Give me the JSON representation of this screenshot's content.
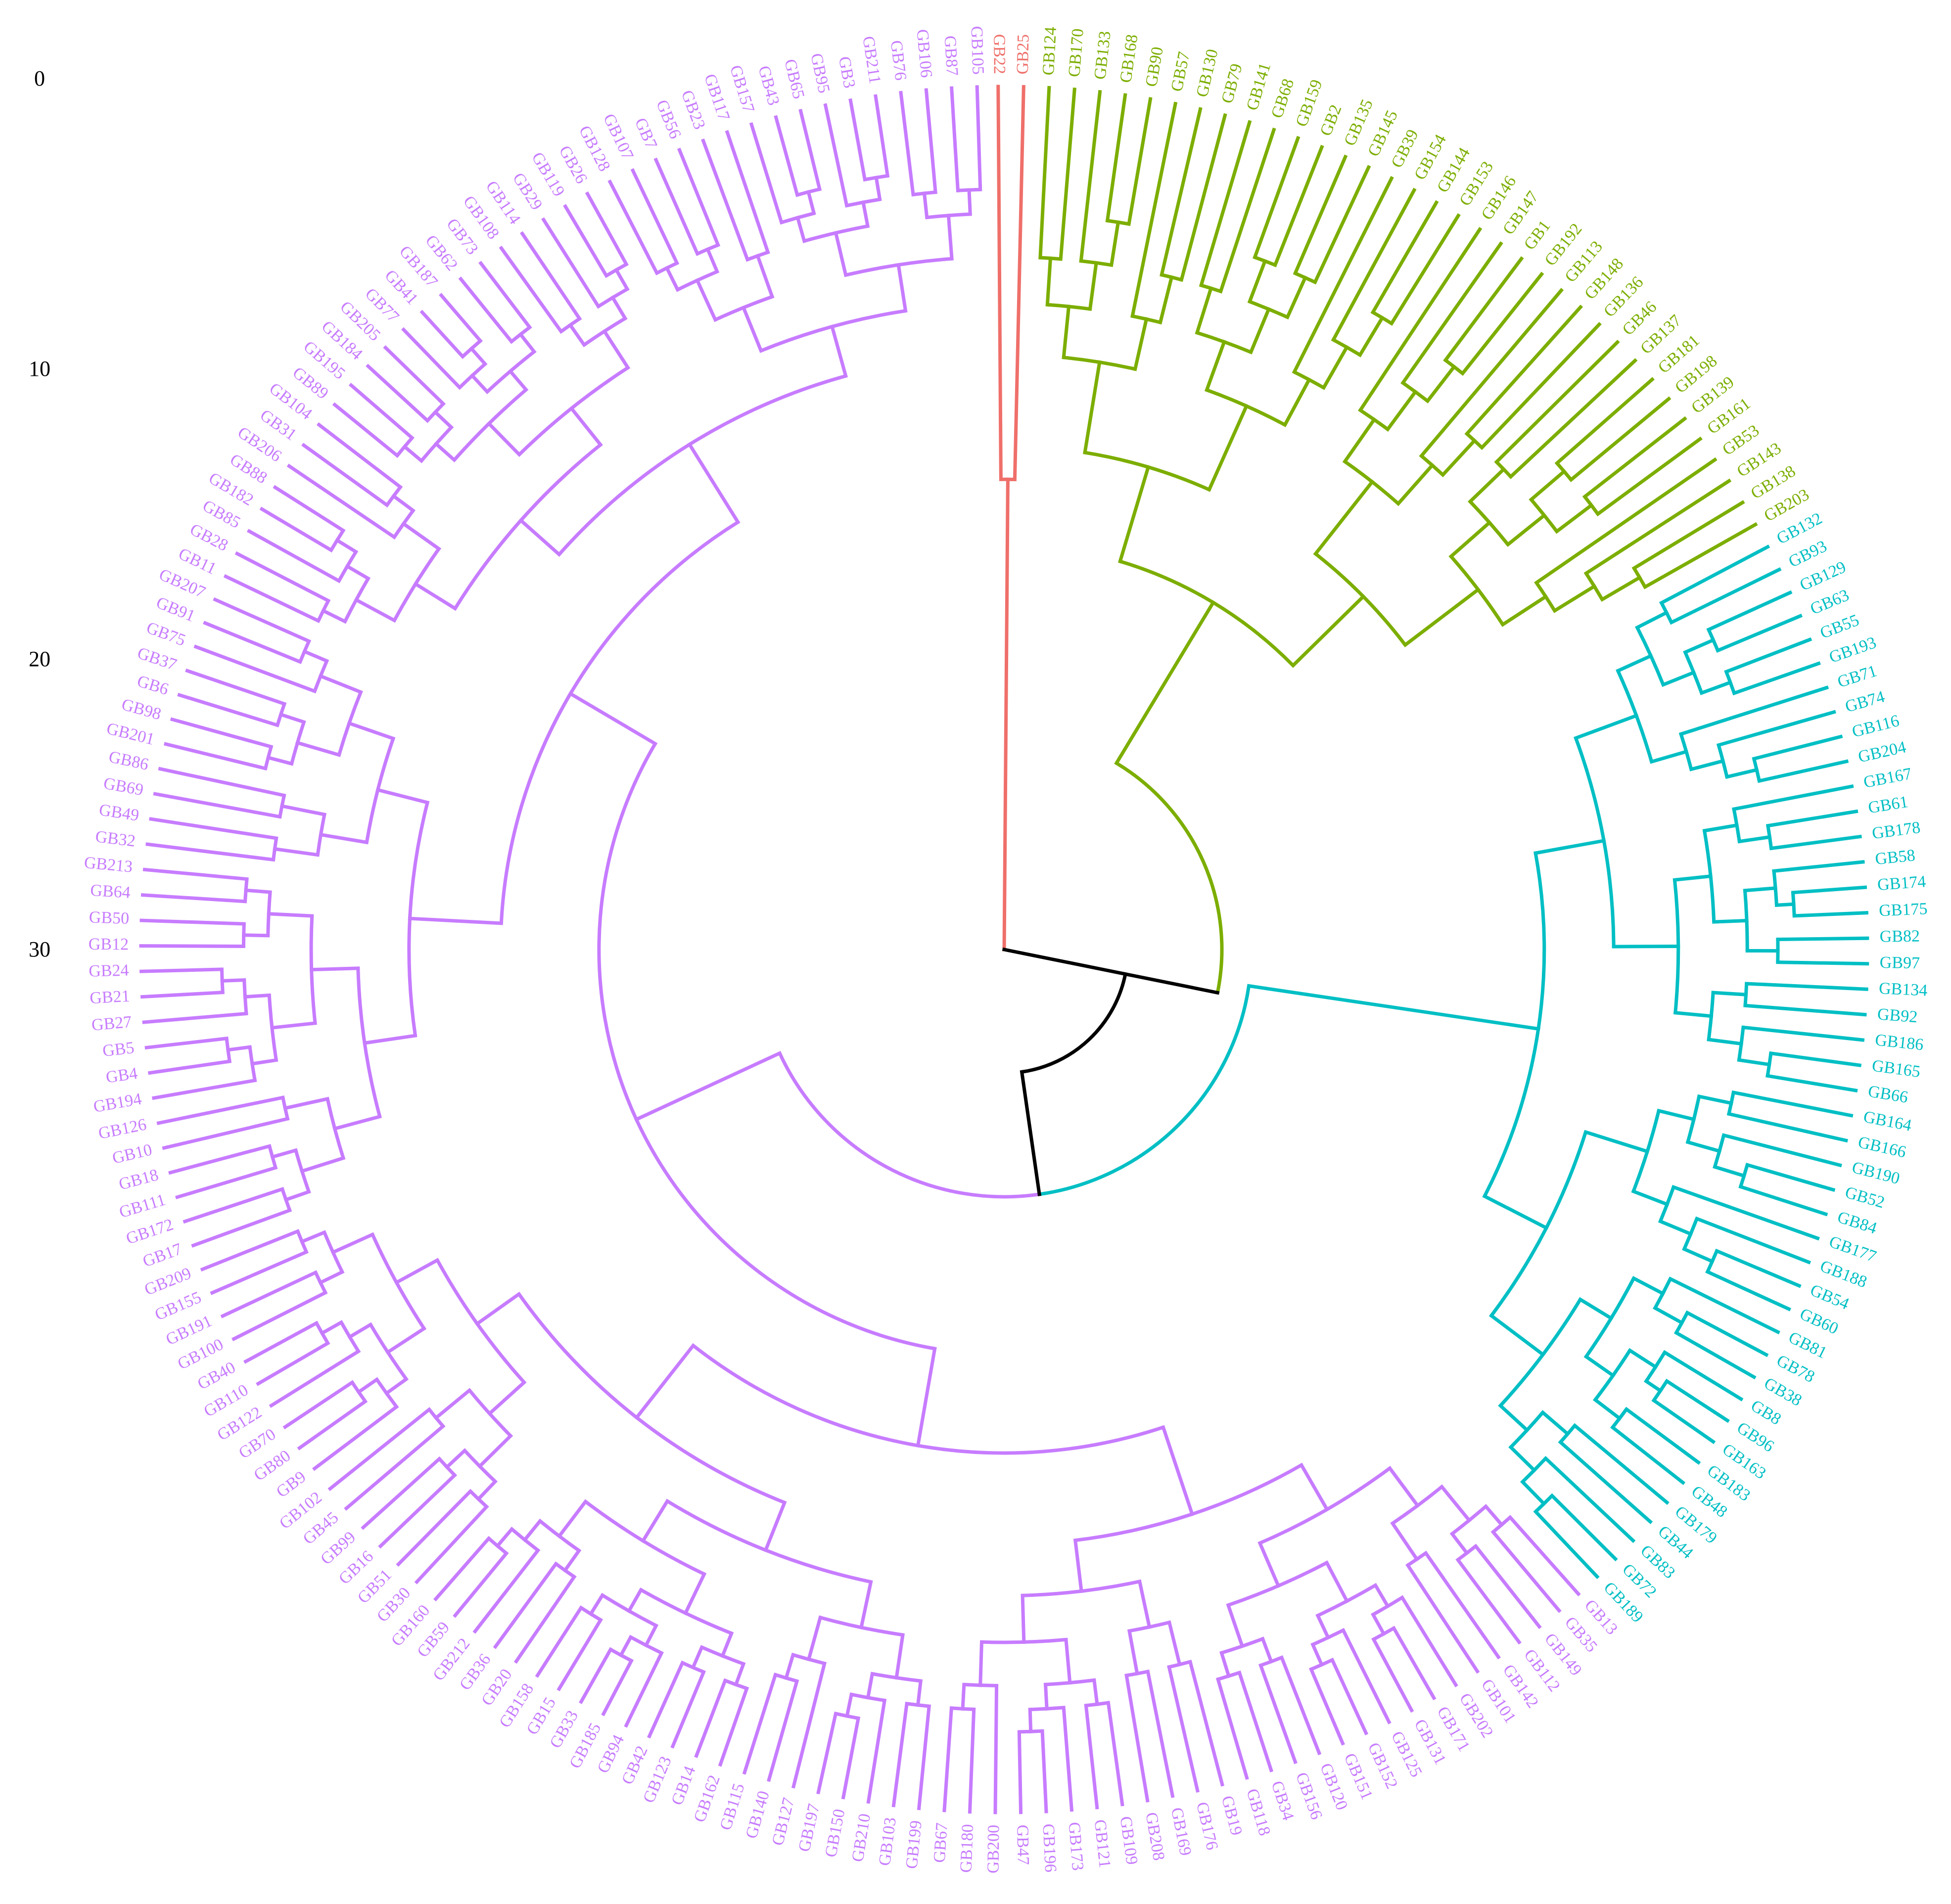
{
  "scale": {
    "ticks": [
      "0",
      "10",
      "20",
      "30"
    ]
  },
  "colors": {
    "root": "#000000",
    "red": "#EF6F6A",
    "green": "#7CAE00",
    "cyan": "#00BFC4",
    "purple": "#C77CFF"
  },
  "groups": [
    {
      "name": "red",
      "leaves": [
        "GB22",
        "GB25"
      ]
    },
    {
      "name": "green",
      "leaves": [
        "GB124",
        "GB170",
        "GB133",
        "GB168",
        "GB90",
        "GB57",
        "GB130",
        "GB79",
        "GB141",
        "GB68",
        "GB159",
        "GB2",
        "GB135",
        "GB145",
        "GB39",
        "GB154",
        "GB144",
        "GB153",
        "GB146",
        "GB147",
        "GB1",
        "GB192",
        "GB113",
        "GB148",
        "GB136",
        "GB46",
        "GB137",
        "GB181",
        "GB198",
        "GB139",
        "GB161",
        "GB53",
        "GB143",
        "GB138",
        "GB203"
      ]
    },
    {
      "name": "cyan",
      "leaves": [
        "GB132",
        "GB93",
        "GB129",
        "GB63",
        "GB55",
        "GB193",
        "GB71",
        "GB74",
        "GB116",
        "GB204",
        "GB167",
        "GB61",
        "GB178",
        "GB58",
        "GB174",
        "GB175",
        "GB82",
        "GB97",
        "GB134",
        "GB92",
        "GB186",
        "GB165",
        "GB66",
        "GB164",
        "GB166",
        "GB190",
        "GB52",
        "GB84",
        "GB177",
        "GB188",
        "GB54",
        "GB60",
        "GB81",
        "GB78",
        "GB38",
        "GB8",
        "GB96",
        "GB163",
        "GB183",
        "GB48",
        "GB179",
        "GB44",
        "GB83",
        "GB72",
        "GB189"
      ]
    },
    {
      "name": "purple",
      "leaves": [
        "GB13",
        "GB35",
        "GB149",
        "GB112",
        "GB142",
        "GB101",
        "GB202",
        "GB171",
        "GB131",
        "GB125",
        "GB152",
        "GB151",
        "GB120",
        "GB156",
        "GB34",
        "GB118",
        "GB19",
        "GB176",
        "GB169",
        "GB208",
        "GB109",
        "GB121",
        "GB173",
        "GB196",
        "GB47",
        "GB200",
        "GB180",
        "GB67",
        "GB199",
        "GB103",
        "GB210",
        "GB150",
        "GB197",
        "GB127",
        "GB140",
        "GB115",
        "GB162",
        "GB14",
        "GB123",
        "GB42",
        "GB94",
        "GB185",
        "GB33",
        "GB15",
        "GB158",
        "GB20",
        "GB36",
        "GB212",
        "GB59",
        "GB160",
        "GB30",
        "GB51",
        "GB16",
        "GB99",
        "GB45",
        "GB102",
        "GB9",
        "GB80",
        "GB70",
        "GB122",
        "GB110",
        "GB40",
        "GB100",
        "GB191",
        "GB155",
        "GB209",
        "GB17",
        "GB172",
        "GB111",
        "GB18",
        "GB10",
        "GB126",
        "GB194",
        "GB4",
        "GB5",
        "GB27",
        "GB21",
        "GB24",
        "GB12",
        "GB50",
        "GB64",
        "GB213",
        "GB32",
        "GB49",
        "GB69",
        "GB86",
        "GB201",
        "GB98",
        "GB6",
        "GB37",
        "GB75",
        "GB91",
        "GB207",
        "GB11",
        "GB28",
        "GB85",
        "GB182",
        "GB88",
        "GB206",
        "GB31",
        "GB104",
        "GB89",
        "GB195",
        "GB184",
        "GB205",
        "GB77",
        "GB41",
        "GB187",
        "GB62",
        "GB73",
        "GB108",
        "GB114",
        "GB29",
        "GB119",
        "GB26",
        "GB128",
        "GB107",
        "GB7",
        "GB56",
        "GB23",
        "GB117",
        "GB157",
        "GB43",
        "GB65",
        "GB95",
        "GB3",
        "GB211",
        "GB76",
        "GB106",
        "GB87",
        "GB105"
      ]
    }
  ]
}
